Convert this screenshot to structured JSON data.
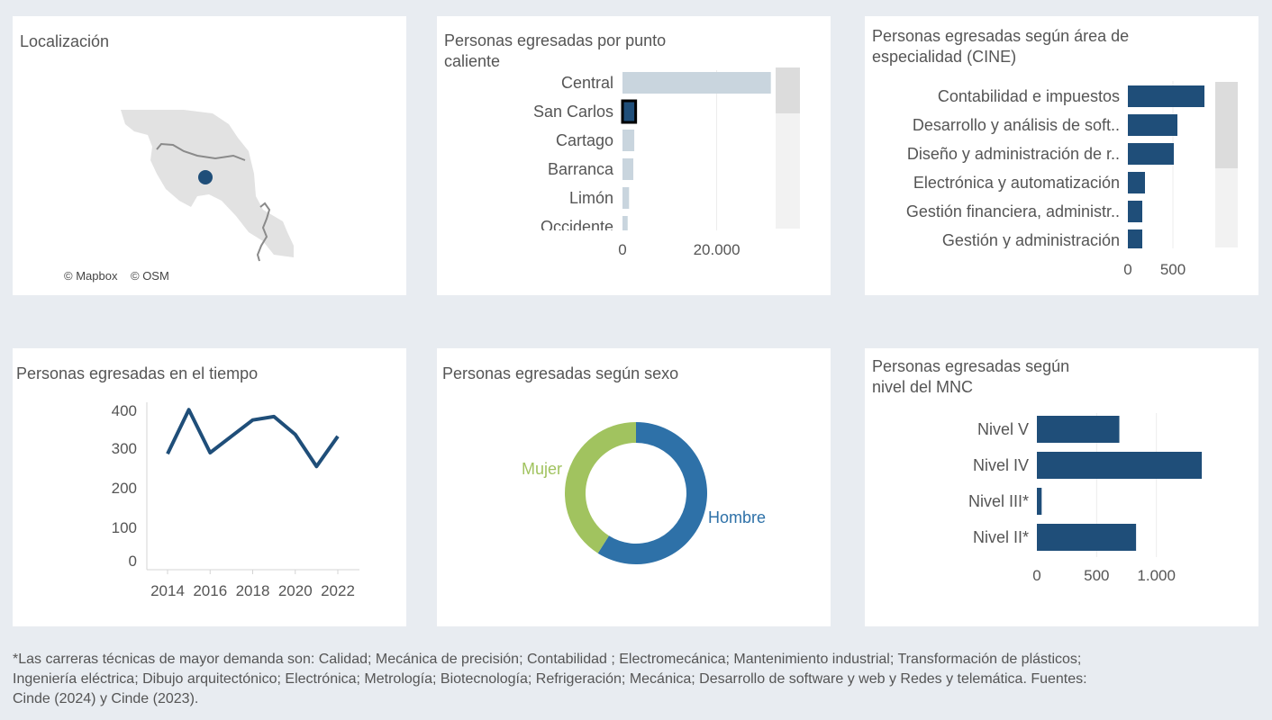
{
  "colors": {
    "dark_blue": "#1f4e79",
    "light_bar": "#c9d5de",
    "hombre": "#2e71a8",
    "mujer": "#a1c35f",
    "axis_text": "#555555",
    "background": "#e8ecf1"
  },
  "map": {
    "title": "Localización",
    "attribution_mapbox": "© Mapbox",
    "attribution_osm": "© OSM"
  },
  "chart_data": [
    {
      "id": "hotspot",
      "type": "bar",
      "orientation": "horizontal",
      "title": "Personas egresadas por punto\ncaliente",
      "categories": [
        "Central",
        "San Carlos",
        "Cartago",
        "Barranca",
        "Limón",
        "Occidente"
      ],
      "values": [
        31500,
        2800,
        2500,
        2300,
        1400,
        1100
      ],
      "highlighted": "San Carlos",
      "xlim": [
        0,
        35000
      ],
      "xticks": [
        0,
        20000
      ],
      "xtick_labels": [
        "0",
        "20.000"
      ],
      "scrollable": true
    },
    {
      "id": "cine",
      "type": "bar",
      "orientation": "horizontal",
      "title": "Personas egresadas según área de\nespecialidad (CINE)",
      "categories": [
        "Contabilidad e impuestos",
        "Desarrollo y análisis de soft..",
        "Diseño y administración de r..",
        "Electrónica y automatización",
        "Gestión financiera, administr..",
        "Gestión y administración"
      ],
      "values": [
        850,
        550,
        510,
        190,
        160,
        160
      ],
      "xlim": [
        0,
        1000
      ],
      "xticks": [
        0,
        500
      ],
      "xtick_labels": [
        "0",
        "500"
      ],
      "scrollable": true
    },
    {
      "id": "time",
      "type": "line",
      "title": "Personas egresadas en el tiempo",
      "x": [
        2014,
        2015,
        2016,
        2017,
        2018,
        2019,
        2020,
        2021,
        2022
      ],
      "values": [
        281,
        397,
        284,
        327,
        370,
        379,
        332,
        248,
        327
      ],
      "xticks": [
        2014,
        2016,
        2018,
        2020,
        2022
      ],
      "xtick_labels": [
        "2014",
        "2016",
        "2018",
        "2020",
        "2022"
      ],
      "yticks": [
        0,
        100,
        200,
        300,
        400
      ],
      "ytick_labels": [
        "0",
        "100",
        "200",
        "300",
        "400"
      ],
      "ylim": [
        0,
        400
      ],
      "xlim": [
        2013.9,
        2022.1
      ]
    },
    {
      "id": "sex",
      "type": "pie",
      "donut": true,
      "title": "Personas egresadas según sexo",
      "labels": [
        "Hombre",
        "Mujer"
      ],
      "values": [
        59,
        41
      ]
    },
    {
      "id": "mnc",
      "type": "bar",
      "orientation": "horizontal",
      "title": "Personas egresadas según\nnivel del MNC",
      "categories": [
        "Nivel V",
        "Nivel IV",
        "Nivel III*",
        "Nivel II*"
      ],
      "values": [
        690,
        1380,
        40,
        830
      ],
      "xlim": [
        0,
        1500
      ],
      "xticks": [
        0,
        500,
        1000
      ],
      "xtick_labels": [
        "0",
        "500",
        "1.000"
      ]
    }
  ],
  "footnote": "*Las carreras técnicas de mayor demanda son: Calidad; Mecánica de precisión; Contabilidad ; Electromecánica; Mantenimiento industrial; Transformación de plásticos; Ingeniería eléctrica; Dibujo arquitectónico; Electrónica; Metrología; Biotecnología; Refrigeración; Mecánica; Desarrollo de software y web y Redes y telemática. Fuentes: Cinde (2024) y Cinde (2023)."
}
